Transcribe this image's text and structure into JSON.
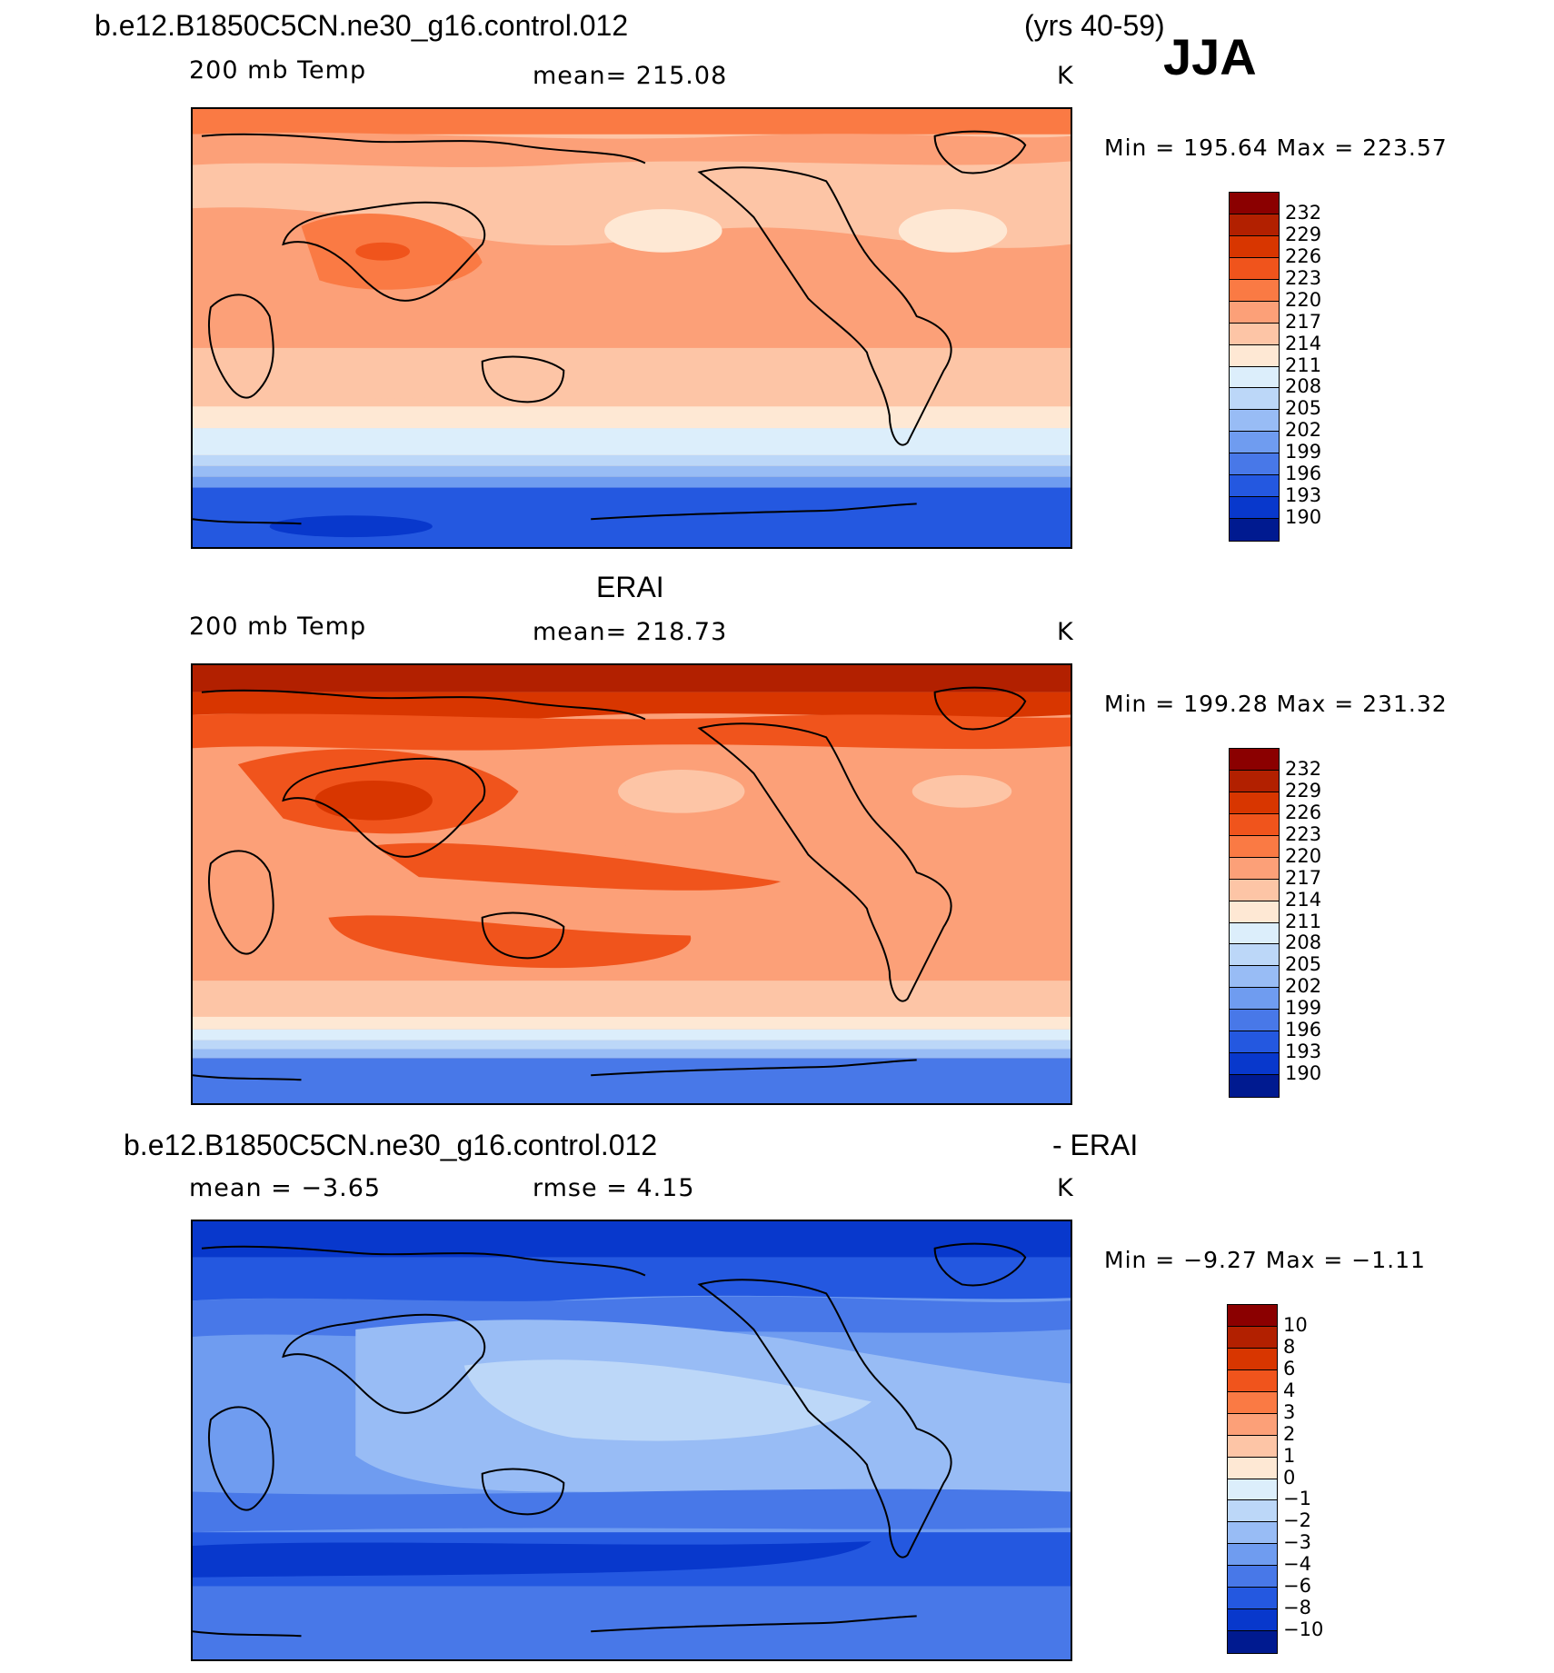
{
  "header": {
    "case_name": "b.e12.B1850C5CN.ne30_g16.control.012",
    "years": "(yrs 40-59)",
    "season": "JJA"
  },
  "panels": [
    {
      "id": "model",
      "title": "",
      "field": "200 mb Temp",
      "stat_text": "mean=  215.08",
      "units": "K",
      "minmax": "Min  =  195.64  Max  =  223.57",
      "levels": [
        "232",
        "229",
        "226",
        "223",
        "220",
        "217",
        "214",
        "211",
        "208",
        "205",
        "202",
        "199",
        "196",
        "193",
        "190"
      ],
      "palette": [
        "#8b0000",
        "#b22000",
        "#d83600",
        "#f0541c",
        "#fa7a44",
        "#fca078",
        "#fdc5a6",
        "#fee8d4",
        "#dceefb",
        "#bcd7f8",
        "#98bcf5",
        "#6f9cf0",
        "#4878e8",
        "#2458e0",
        "#0838cc",
        "#001a90"
      ]
    },
    {
      "id": "obs",
      "title": "ERAI",
      "field": "200 mb Temp",
      "stat_text": "mean=  218.73",
      "units": "K",
      "minmax": "Min  =  199.28  Max  =  231.32",
      "levels": [
        "232",
        "229",
        "226",
        "223",
        "220",
        "217",
        "214",
        "211",
        "208",
        "205",
        "202",
        "199",
        "196",
        "193",
        "190"
      ],
      "palette": [
        "#8b0000",
        "#b22000",
        "#d83600",
        "#f0541c",
        "#fa7a44",
        "#fca078",
        "#fdc5a6",
        "#fee8d4",
        "#dceefb",
        "#bcd7f8",
        "#98bcf5",
        "#6f9cf0",
        "#4878e8",
        "#2458e0",
        "#0838cc",
        "#001a90"
      ]
    },
    {
      "id": "diff",
      "title": "b.e12.B1850C5CN.ne30_g16.control.012",
      "title_suffix": "- ERAI",
      "stat_text": "mean  =   −3.65",
      "stat2_text": "rmse  =     4.15",
      "units": "K",
      "minmax": "Min  =   −9.27  Max  =   −1.11",
      "levels": [
        "10",
        "8",
        "6",
        "4",
        "3",
        "2",
        "1",
        "0",
        "−1",
        "−2",
        "−3",
        "−4",
        "−6",
        "−8",
        "−10"
      ],
      "palette": [
        "#8b0000",
        "#b22000",
        "#d83600",
        "#f0541c",
        "#fa7a44",
        "#fca078",
        "#fdc5a6",
        "#fee8d4",
        "#dceefb",
        "#bcd7f8",
        "#98bcf5",
        "#6f9cf0",
        "#4878e8",
        "#2458e0",
        "#0838cc",
        "#001a90"
      ]
    }
  ]
}
